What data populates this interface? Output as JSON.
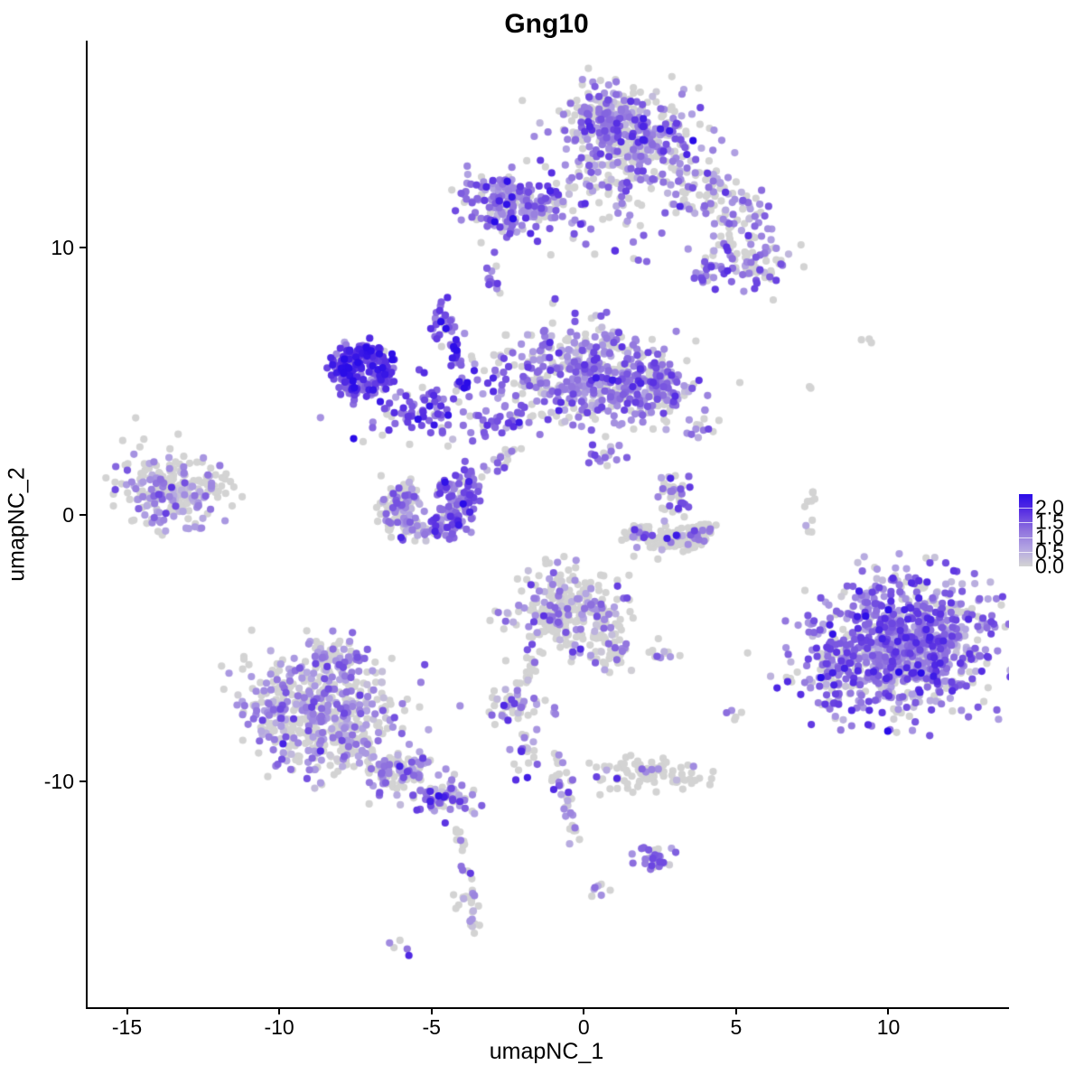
{
  "title": "Gng10",
  "colors": {
    "background": "#ffffff",
    "axis": "#000000",
    "zero_expression_grey": "#d3d3d3",
    "max_expression_blue": "#2a0ce8"
  },
  "chart_data": {
    "type": "scatter",
    "title": "Gng10",
    "xlabel": "umapNC_1",
    "ylabel": "umapNC_2",
    "xlim": [
      -16.35,
      13.9
    ],
    "ylim": [
      -18.45,
      17.75
    ],
    "grid": false,
    "x_ticks": {
      "values": [
        -15,
        -10,
        -5,
        0,
        5,
        10
      ],
      "labels": [
        "-15",
        "-10",
        "-5",
        "0",
        "5",
        "10"
      ]
    },
    "y_ticks": {
      "values": [
        10,
        0,
        -10
      ],
      "labels": [
        "10",
        "0",
        "-10"
      ]
    },
    "legend": {
      "position": "right",
      "tick_labels": [
        "2.0",
        "1.5",
        "1.0",
        "0.5",
        "0.0"
      ],
      "tick_values": [
        2.0,
        1.5,
        1.0,
        0.5,
        0.0
      ],
      "scale_max": 2.47,
      "scale_min": 0.0
    },
    "colorscale": {
      "stops": [
        0,
        0.5,
        1.0,
        1.5,
        2.0
      ],
      "colors": [
        "#d3d3d3",
        "#b2a4e2",
        "#8f72de",
        "#5c33e2",
        "#2a0ce8"
      ]
    },
    "point_radius": 4.1,
    "seed": 20,
    "clusters": [
      {
        "name": "top-main",
        "cx": 1.4,
        "cy": 14.0,
        "sx": 1.1,
        "sy": 0.95,
        "rot": -10,
        "n": 430,
        "p0": 0.44,
        "mean": 0.85,
        "sd": 0.4
      },
      {
        "name": "top-main-upper",
        "cx": 0.6,
        "cy": 15.0,
        "sx": 0.55,
        "sy": 0.4,
        "n": 70,
        "p0": 0.5,
        "mean": 0.8,
        "sd": 0.35
      },
      {
        "name": "top-right-trail",
        "cx": 4.4,
        "cy": 11.6,
        "sx": 1.25,
        "sy": 0.6,
        "rot": -35,
        "n": 140,
        "p0": 0.5,
        "mean": 0.75,
        "sd": 0.4
      },
      {
        "name": "top-right-lower",
        "cx": 5.4,
        "cy": 9.4,
        "sx": 0.65,
        "sy": 0.45,
        "rot": -20,
        "n": 55,
        "p0": 0.45,
        "mean": 0.85,
        "sd": 0.4
      },
      {
        "name": "top-right-purple-clump",
        "cx": 4.3,
        "cy": 9.0,
        "sx": 0.4,
        "sy": 0.3,
        "n": 28,
        "p0": 0.25,
        "mean": 1.0,
        "sd": 0.35
      },
      {
        "name": "top-left-purple",
        "cx": -2.5,
        "cy": 11.6,
        "sx": 0.8,
        "sy": 0.6,
        "n": 175,
        "p0": 0.18,
        "mean": 0.95,
        "sd": 0.4
      },
      {
        "name": "top-left-tail",
        "cx": -1.1,
        "cy": 11.3,
        "sx": 0.55,
        "sy": 0.3,
        "rot": -15,
        "n": 40,
        "p0": 0.45,
        "mean": 0.7,
        "sd": 0.35
      },
      {
        "name": "top-connectors",
        "cx": 0.9,
        "cy": 10.9,
        "sx": 1.0,
        "sy": 0.8,
        "n": 26,
        "p0": 0.5,
        "mean": 0.8,
        "sd": 0.4
      },
      {
        "name": "small-clump-upper-left",
        "cx": -3.0,
        "cy": 8.8,
        "sx": 0.15,
        "sy": 0.3,
        "n": 14,
        "p0": 0.12,
        "mean": 1.0,
        "sd": 0.3
      },
      {
        "name": "midleft-blue-ring",
        "shape": "ring",
        "cx": -7.3,
        "cy": 5.4,
        "rx": 0.7,
        "ry": 0.75,
        "rw": 0.22,
        "n": 190,
        "p0": 0.07,
        "mean": 1.3,
        "sd": 0.4
      },
      {
        "name": "midleft-core",
        "cx": -7.6,
        "cy": 5.6,
        "sx": 0.35,
        "sy": 0.35,
        "n": 40,
        "p0": 0.05,
        "mean": 1.5,
        "sd": 0.35
      },
      {
        "name": "midleft-arc",
        "cx": -5.3,
        "cy": 3.9,
        "sx": 1.0,
        "sy": 0.5,
        "rot": 15,
        "n": 85,
        "p0": 0.15,
        "mean": 1.1,
        "sd": 0.4
      },
      {
        "name": "vertical-chain",
        "shape": "line",
        "x1": -4.4,
        "y1": 6.7,
        "x2": -4.05,
        "y2": 4.7,
        "jitter": 0.1,
        "n": 28,
        "p0": 0.05,
        "mean": 1.5,
        "sd": 0.35
      },
      {
        "name": "chain-top-clump",
        "cx": -4.75,
        "cy": 7.3,
        "sx": 0.2,
        "sy": 0.35,
        "n": 26,
        "p0": 0.06,
        "mean": 1.3,
        "sd": 0.35
      },
      {
        "name": "center-connectors",
        "cx": -3.0,
        "cy": 3.6,
        "sx": 0.6,
        "sy": 0.5,
        "n": 38,
        "p0": 0.3,
        "mean": 0.95,
        "sd": 0.4
      },
      {
        "name": "central-main",
        "cx": 0.1,
        "cy": 5.2,
        "sx": 1.45,
        "sy": 0.9,
        "rot": -5,
        "n": 500,
        "p0": 0.34,
        "mean": 0.85,
        "sd": 0.4
      },
      {
        "name": "central-right-lobe",
        "cx": 2.1,
        "cy": 4.8,
        "sx": 0.6,
        "sy": 0.55,
        "n": 120,
        "p0": 0.3,
        "mean": 0.9,
        "sd": 0.4
      },
      {
        "name": "central-right-dots",
        "cx": 3.6,
        "cy": 3.3,
        "sx": 0.4,
        "sy": 0.35,
        "n": 12,
        "p0": 0.35,
        "mean": 0.9,
        "sd": 0.4
      },
      {
        "name": "central-below-dots",
        "cx": 0.7,
        "cy": 2.2,
        "sx": 0.45,
        "sy": 0.35,
        "n": 14,
        "p0": 0.4,
        "mean": 0.8,
        "sd": 0.4
      },
      {
        "name": "far-left",
        "cx": -13.6,
        "cy": 0.9,
        "sx": 0.95,
        "sy": 0.72,
        "rot": -10,
        "n": 235,
        "p0": 0.58,
        "mean": 0.65,
        "sd": 0.35
      },
      {
        "name": "far-left-outliers",
        "cx": -11.9,
        "cy": 1.6,
        "sx": 0.4,
        "sy": 0.5,
        "n": 7,
        "p0": 0.75,
        "mean": 0.6,
        "sd": 0.3
      },
      {
        "name": "crescent-left-half",
        "shape": "ring",
        "cx": -5.2,
        "cy": 0.2,
        "rx": 1.1,
        "ry": 0.85,
        "rw": 0.3,
        "arc": [
          110,
          270
        ],
        "n": 130,
        "p0": 0.45,
        "mean": 0.7,
        "sd": 0.35
      },
      {
        "name": "crescent-right-half",
        "shape": "ring",
        "cx": -5.2,
        "cy": 0.2,
        "rx": 1.1,
        "ry": 0.85,
        "rw": 0.28,
        "arc": [
          270,
          430
        ],
        "n": 120,
        "p0": 0.18,
        "mean": 1.05,
        "sd": 0.4
      },
      {
        "name": "crescent-right-tip",
        "cx": -3.9,
        "cy": 1.3,
        "sx": 0.25,
        "sy": 0.3,
        "n": 22,
        "p0": 0.2,
        "mean": 1.1,
        "sd": 0.35
      },
      {
        "name": "crescent-to-center-trail",
        "shape": "line",
        "x1": -3.3,
        "y1": 1.6,
        "x2": -2.3,
        "y2": 2.5,
        "jitter": 0.15,
        "n": 16,
        "p0": 0.45,
        "mean": 0.9,
        "sd": 0.4
      },
      {
        "name": "right-center-clump",
        "cx": 2.9,
        "cy": 0.6,
        "sx": 0.3,
        "sy": 0.5,
        "n": 42,
        "p0": 0.55,
        "mean": 0.95,
        "sd": 0.4
      },
      {
        "name": "right-center-grey-crescent",
        "shape": "ring",
        "cx": 2.8,
        "cy": -0.35,
        "rx": 1.15,
        "ry": 0.7,
        "rw": 0.25,
        "arc": [
          180,
          360
        ],
        "n": 150,
        "p0": 0.86,
        "mean": 0.95,
        "sd": 0.45
      },
      {
        "name": "below-center",
        "cx": -0.55,
        "cy": -3.6,
        "sx": 0.95,
        "sy": 0.75,
        "n": 270,
        "p0": 0.68,
        "mean": 0.8,
        "sd": 0.4
      },
      {
        "name": "below-center-tail",
        "cx": 0.7,
        "cy": -5.2,
        "sx": 0.55,
        "sy": 0.4,
        "rot": -40,
        "n": 45,
        "p0": 0.55,
        "mean": 0.85,
        "sd": 0.4
      },
      {
        "name": "below-center-trail",
        "shape": "line",
        "x1": -1.55,
        "y1": -5.3,
        "x2": -1.95,
        "y2": -6.3,
        "jitter": 0.08,
        "n": 12,
        "p0": 0.85,
        "mean": 0.6,
        "sd": 0.3
      },
      {
        "name": "small-clump-left",
        "cx": -2.45,
        "cy": -7.1,
        "sx": 0.5,
        "sy": 0.35,
        "n": 45,
        "p0": 0.45,
        "mean": 0.85,
        "sd": 0.4
      },
      {
        "name": "dot-below-clump",
        "cx": -1.15,
        "cy": -7.35,
        "sx": 0.1,
        "sy": 0.1,
        "n": 3,
        "p0": 0.3,
        "mean": 0.9,
        "sd": 0.2
      },
      {
        "name": "beads-right-small",
        "cx": 2.6,
        "cy": -5.1,
        "sx": 0.35,
        "sy": 0.15,
        "n": 11,
        "p0": 0.6,
        "mean": 0.9,
        "sd": 0.4
      },
      {
        "name": "dots-far-right-small",
        "cx": 4.95,
        "cy": -7.4,
        "sx": 0.12,
        "sy": 0.35,
        "n": 5,
        "p0": 0.5,
        "mean": 1.0,
        "sd": 0.3
      },
      {
        "name": "bottomleft-main",
        "cx": -8.7,
        "cy": -7.5,
        "sx": 1.3,
        "sy": 1.1,
        "rot": -15,
        "n": 560,
        "p0": 0.5,
        "mean": 0.7,
        "sd": 0.35
      },
      {
        "name": "bottomleft-top-tip",
        "cx": -8.2,
        "cy": -5.4,
        "sx": 0.5,
        "sy": 0.4,
        "n": 60,
        "p0": 0.45,
        "mean": 0.75,
        "sd": 0.35
      },
      {
        "name": "bottomleft-trail",
        "cx": -6.2,
        "cy": -9.6,
        "sx": 1.05,
        "sy": 0.45,
        "rot": -30,
        "n": 120,
        "p0": 0.4,
        "mean": 0.8,
        "sd": 0.4
      },
      {
        "name": "bottomleft-trail-end",
        "cx": -4.5,
        "cy": -10.6,
        "sx": 0.45,
        "sy": 0.35,
        "rot": -30,
        "n": 55,
        "p0": 0.25,
        "mean": 0.95,
        "sd": 0.4
      },
      {
        "name": "bottomleft-descend-trail",
        "shape": "line",
        "x1": -4.25,
        "y1": -11.4,
        "x2": -3.85,
        "y2": -13.7,
        "jitter": 0.09,
        "n": 14,
        "p0": 0.65,
        "mean": 0.8,
        "sd": 0.4
      },
      {
        "name": "bottomleft-bottom-clump",
        "cx": -3.8,
        "cy": -14.8,
        "sx": 0.22,
        "sy": 0.5,
        "n": 26,
        "p0": 0.7,
        "mean": 0.7,
        "sd": 0.35
      },
      {
        "name": "bottomleft-bottom-pair",
        "cx": -6.2,
        "cy": -16.1,
        "sx": 0.25,
        "sy": 0.12,
        "rot": -30,
        "n": 5,
        "p0": 0.5,
        "mean": 0.9,
        "sd": 0.3
      },
      {
        "name": "bottomcenter-vertical-trail",
        "shape": "line",
        "x1": -1.05,
        "y1": -9.0,
        "x2": -0.35,
        "y2": -12.1,
        "jitter": 0.15,
        "n": 38,
        "p0": 0.45,
        "mean": 0.85,
        "sd": 0.4
      },
      {
        "name": "bottomcenter-left-clump",
        "cx": -2.15,
        "cy": -9.1,
        "sx": 0.3,
        "sy": 0.4,
        "n": 20,
        "p0": 0.4,
        "mean": 0.9,
        "sd": 0.4
      },
      {
        "name": "bottomcenter-grey-band",
        "cx": 2.1,
        "cy": -9.7,
        "sx": 0.85,
        "sy": 0.32,
        "n": 95,
        "p0": 0.9,
        "mean": 0.8,
        "sd": 0.4
      },
      {
        "name": "bottomcenter-purple-clump",
        "cx": 2.2,
        "cy": -12.8,
        "sx": 0.35,
        "sy": 0.3,
        "n": 30,
        "p0": 0.2,
        "mean": 1.0,
        "sd": 0.35
      },
      {
        "name": "bottomcenter-small-pair",
        "cx": 0.4,
        "cy": -14.0,
        "sx": 0.15,
        "sy": 0.15,
        "n": 7,
        "p0": 0.55,
        "mean": 0.8,
        "sd": 0.3
      },
      {
        "name": "right-main",
        "cx": 10.4,
        "cy": -4.9,
        "sx": 1.5,
        "sy": 1.25,
        "rot": 20,
        "n": 950,
        "p0": 0.22,
        "mean": 0.9,
        "sd": 0.45
      },
      {
        "name": "right-main-left-tip",
        "cx": 8.3,
        "cy": -5.6,
        "sx": 0.4,
        "sy": 0.7,
        "n": 70,
        "p0": 0.25,
        "mean": 1.0,
        "sd": 0.4
      },
      {
        "name": "right-sparse-top-pair",
        "cx": 9.2,
        "cy": 6.6,
        "sx": 0.3,
        "sy": 0.12,
        "n": 3,
        "p0": 1.0,
        "mean": 0.0,
        "sd": 0.0
      },
      {
        "name": "right-sparse-mid",
        "cx": 7.35,
        "cy": 4.6,
        "sx": 0.2,
        "sy": 0.25,
        "n": 2,
        "p0": 1.0,
        "mean": 0.0,
        "sd": 0.0
      },
      {
        "name": "right-sparse-vertical",
        "shape": "line",
        "x1": 7.45,
        "y1": 1.0,
        "x2": 7.3,
        "y2": -0.8,
        "jitter": 0.07,
        "n": 11,
        "p0": 0.85,
        "mean": 0.8,
        "sd": 0.3
      }
    ]
  }
}
